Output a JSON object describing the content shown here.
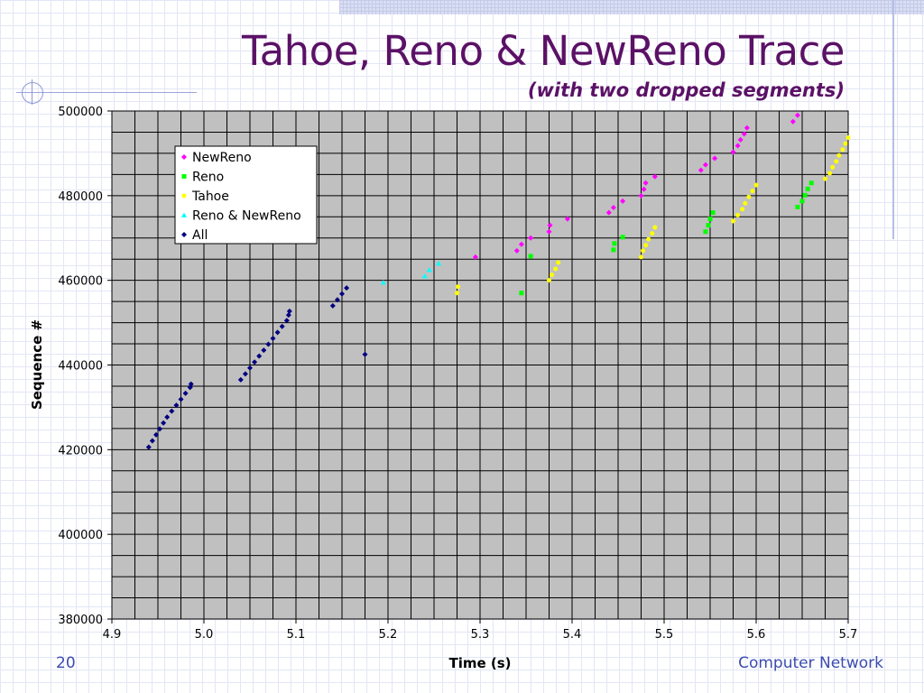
{
  "slide": {
    "title": "Tahoe, Reno & NewReno Trace",
    "subtitle": "(with two dropped segments)",
    "number": "20",
    "footer": "Computer Network"
  },
  "chart_data": {
    "type": "scatter",
    "title": "",
    "xlabel": "Time (s)",
    "ylabel": "Sequence #",
    "xlim": [
      4.9,
      5.7
    ],
    "ylim": [
      380000,
      500000
    ],
    "x_ticks": [
      "4.9",
      "5.0",
      "5.1",
      "5.2",
      "5.3",
      "5.4",
      "5.5",
      "5.6",
      "5.7"
    ],
    "y_ticks": [
      "380000",
      "400000",
      "420000",
      "440000",
      "460000",
      "480000",
      "500000"
    ],
    "grid": true,
    "legend_position": "top-left",
    "series": [
      {
        "name": "NewReno",
        "color": "#ff00ff",
        "marker": "diamond",
        "points": [
          [
            5.295,
            465500
          ],
          [
            5.34,
            467000
          ],
          [
            5.345,
            468500
          ],
          [
            5.355,
            470000
          ],
          [
            5.375,
            471500
          ],
          [
            5.376,
            473000
          ],
          [
            5.395,
            474500
          ],
          [
            5.44,
            476000
          ],
          [
            5.445,
            477200
          ],
          [
            5.455,
            478700
          ],
          [
            5.475,
            480000
          ],
          [
            5.478,
            481500
          ],
          [
            5.48,
            483000
          ],
          [
            5.49,
            484500
          ],
          [
            5.54,
            486000
          ],
          [
            5.545,
            487300
          ],
          [
            5.555,
            488800
          ],
          [
            5.575,
            490300
          ],
          [
            5.58,
            491800
          ],
          [
            5.583,
            493200
          ],
          [
            5.587,
            494600
          ],
          [
            5.59,
            496000
          ],
          [
            5.64,
            497500
          ],
          [
            5.645,
            499000
          ]
        ]
      },
      {
        "name": "Reno",
        "color": "#00ff00",
        "marker": "square",
        "points": [
          [
            5.345,
            457000
          ],
          [
            5.355,
            465700
          ],
          [
            5.445,
            467200
          ],
          [
            5.446,
            468700
          ],
          [
            5.455,
            470200
          ],
          [
            5.545,
            471500
          ],
          [
            5.548,
            473000
          ],
          [
            5.55,
            474500
          ],
          [
            5.553,
            476000
          ],
          [
            5.645,
            477300
          ],
          [
            5.65,
            478700
          ],
          [
            5.653,
            480100
          ],
          [
            5.656,
            481600
          ],
          [
            5.66,
            483000
          ]
        ]
      },
      {
        "name": "Tahoe",
        "color": "#ffff00",
        "marker": "circle",
        "points": [
          [
            5.275,
            457000
          ],
          [
            5.276,
            458500
          ],
          [
            5.375,
            460000
          ],
          [
            5.378,
            461300
          ],
          [
            5.382,
            462700
          ],
          [
            5.385,
            464200
          ],
          [
            5.475,
            465500
          ],
          [
            5.477,
            467000
          ],
          [
            5.48,
            468300
          ],
          [
            5.483,
            469700
          ],
          [
            5.487,
            471100
          ],
          [
            5.49,
            472500
          ],
          [
            5.575,
            474000
          ],
          [
            5.58,
            475400
          ],
          [
            5.585,
            476800
          ],
          [
            5.588,
            478200
          ],
          [
            5.592,
            479700
          ],
          [
            5.596,
            481100
          ],
          [
            5.6,
            482500
          ],
          [
            5.675,
            484000
          ],
          [
            5.68,
            485300
          ],
          [
            5.683,
            486700
          ],
          [
            5.687,
            488100
          ],
          [
            5.69,
            489500
          ],
          [
            5.694,
            490900
          ],
          [
            5.697,
            492300
          ],
          [
            5.7,
            493700
          ]
        ]
      },
      {
        "name": "Reno & NewReno",
        "color": "#00ffff",
        "marker": "triangle",
        "points": [
          [
            5.195,
            459500
          ],
          [
            5.24,
            461000
          ],
          [
            5.245,
            462500
          ],
          [
            5.255,
            464000
          ]
        ]
      },
      {
        "name": "All",
        "color": "#000080",
        "marker": "diamond",
        "points": [
          [
            4.94,
            420600
          ],
          [
            4.944,
            422100
          ],
          [
            4.948,
            423500
          ],
          [
            4.952,
            424900
          ],
          [
            4.956,
            426300
          ],
          [
            4.96,
            427700
          ],
          [
            4.965,
            429100
          ],
          [
            4.97,
            430500
          ],
          [
            4.975,
            431900
          ],
          [
            4.98,
            433300
          ],
          [
            4.985,
            434700
          ],
          [
            4.986,
            435500
          ],
          [
            5.04,
            436500
          ],
          [
            5.045,
            437900
          ],
          [
            5.05,
            439300
          ],
          [
            5.055,
            440700
          ],
          [
            5.06,
            442100
          ],
          [
            5.065,
            443500
          ],
          [
            5.07,
            444900
          ],
          [
            5.075,
            446300
          ],
          [
            5.08,
            447700
          ],
          [
            5.085,
            449100
          ],
          [
            5.09,
            450500
          ],
          [
            5.092,
            451800
          ],
          [
            5.093,
            452700
          ],
          [
            5.14,
            454000
          ],
          [
            5.145,
            455400
          ],
          [
            5.15,
            456800
          ],
          [
            5.155,
            458200
          ],
          [
            5.175,
            442500
          ]
        ]
      }
    ]
  }
}
